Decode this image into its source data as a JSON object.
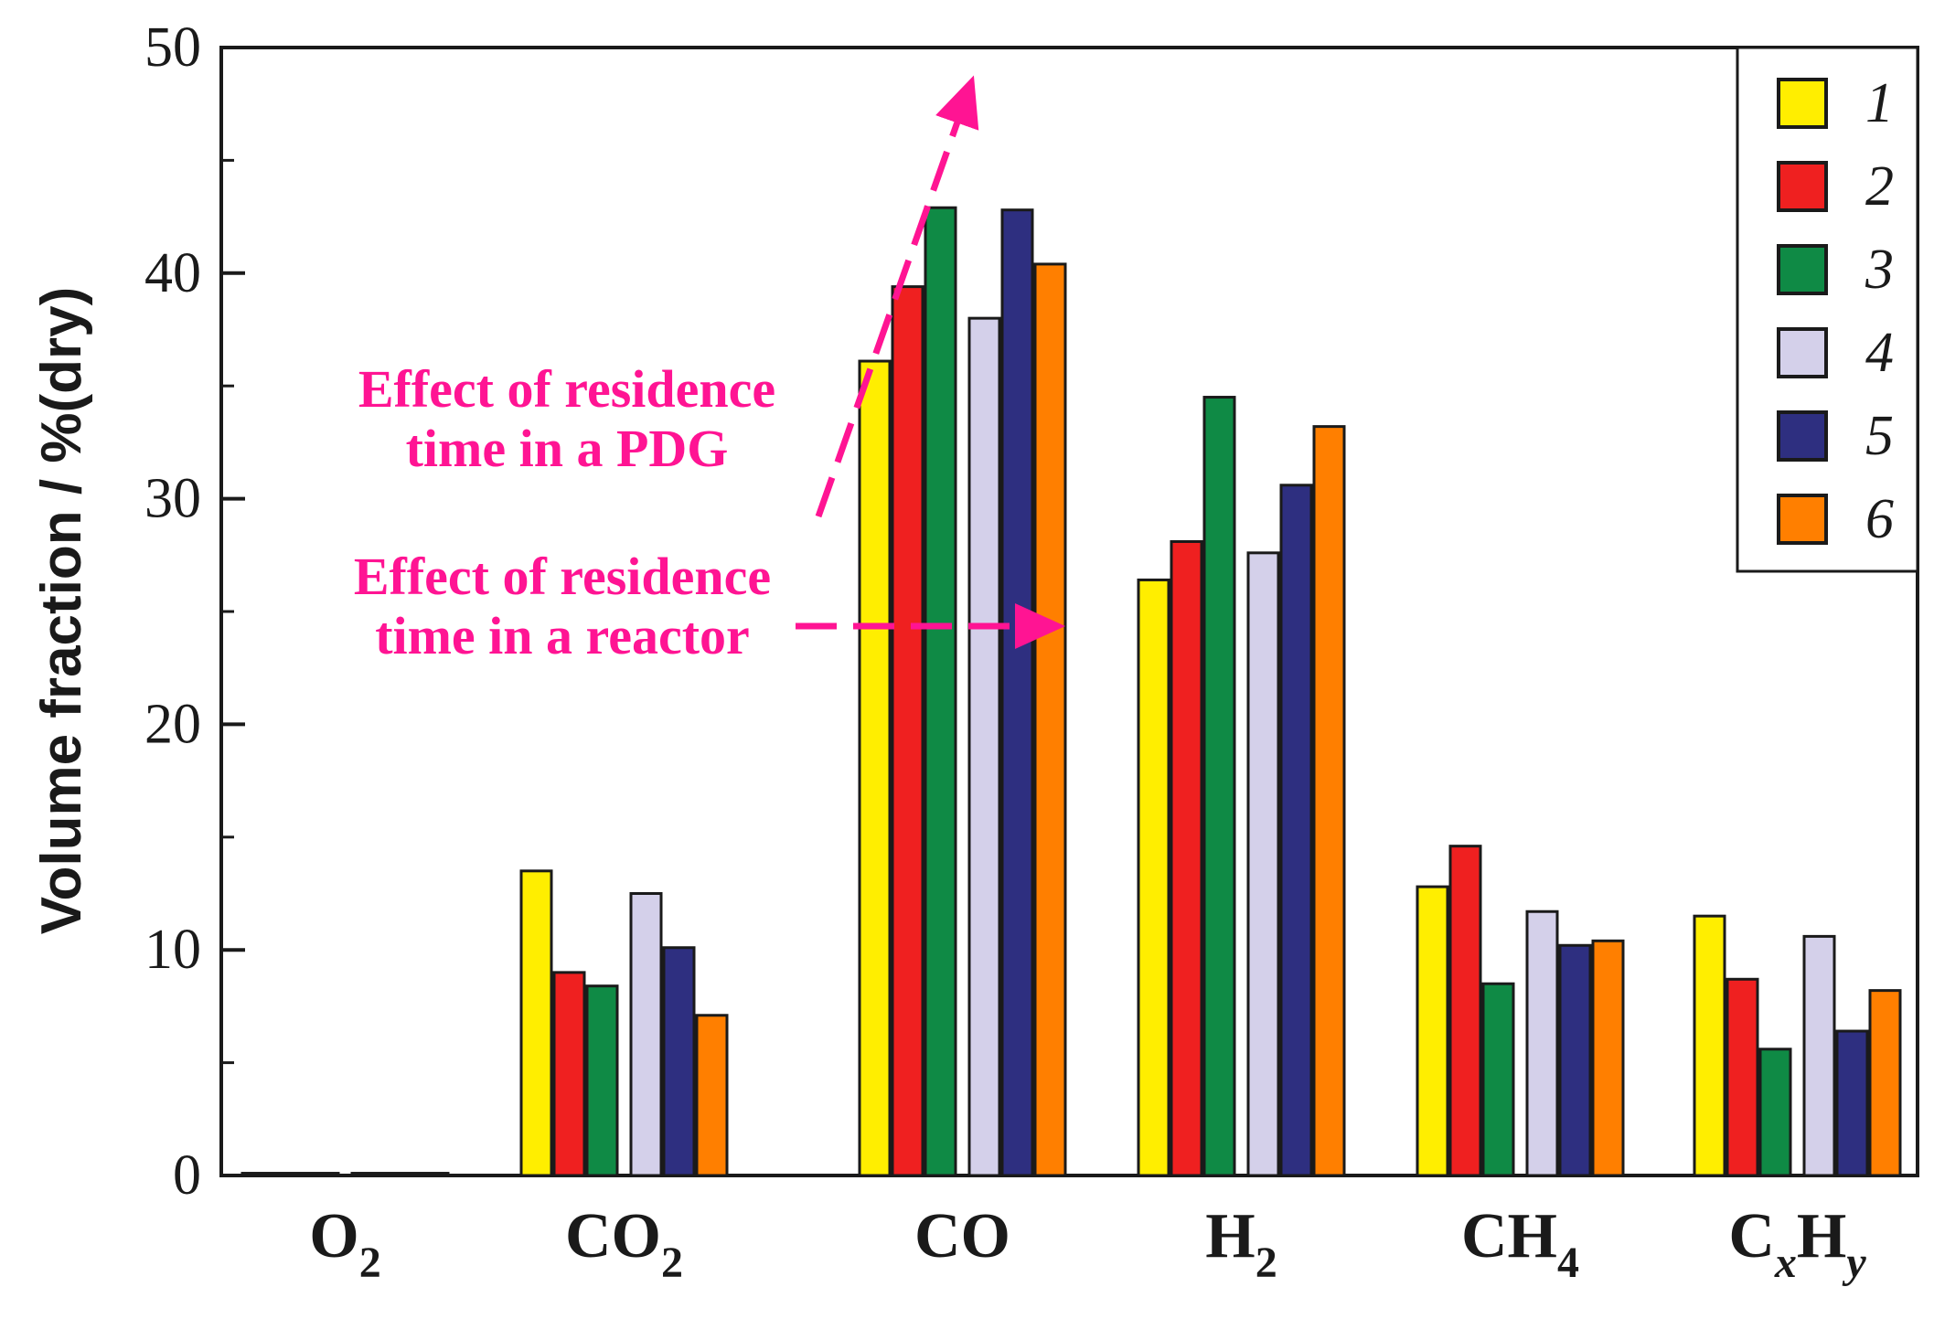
{
  "chart_data": {
    "type": "bar",
    "title": "",
    "xlabel": "",
    "ylabel": "Volume fraction / %(dry)",
    "ylim": [
      0,
      50
    ],
    "yticks": [
      0,
      10,
      20,
      30,
      40,
      50
    ],
    "grid": false,
    "legend_position": "top-right",
    "categories": [
      {
        "base": "O",
        "sub": "2",
        "subitalic": false
      },
      {
        "base": "CO",
        "sub": "2",
        "subitalic": false
      },
      {
        "base": "CO",
        "sub": "",
        "subitalic": false
      },
      {
        "base": "H",
        "sub": "2",
        "subitalic": false
      },
      {
        "base": "CH",
        "sub": "4",
        "subitalic": false
      },
      {
        "base": "C",
        "sub": "x",
        "base2": "H",
        "sub2": "y",
        "subitalic": true
      }
    ],
    "series": [
      {
        "name": "1",
        "color": "#ffee00",
        "values": [
          0.1,
          13.5,
          36.1,
          26.4,
          12.8,
          11.5
        ]
      },
      {
        "name": "2",
        "color": "#ef2020",
        "values": [
          0.1,
          9.0,
          39.4,
          28.1,
          14.6,
          8.7
        ]
      },
      {
        "name": "3",
        "color": "#0f8a45",
        "values": [
          0.1,
          8.4,
          42.9,
          34.5,
          8.5,
          5.6
        ]
      },
      {
        "name": "4",
        "color": "#d4d0ea",
        "values": [
          0.1,
          12.5,
          38.0,
          27.6,
          11.7,
          10.6
        ]
      },
      {
        "name": "5",
        "color": "#2e2f80",
        "values": [
          0.1,
          10.1,
          42.8,
          30.6,
          10.2,
          6.4
        ]
      },
      {
        "name": "6",
        "color": "#ff7f00",
        "values": [
          0.1,
          7.1,
          40.4,
          33.2,
          10.4,
          8.2
        ]
      }
    ],
    "annotations": [
      {
        "lines": [
          "Effect of residence",
          "time in a PDG"
        ],
        "color": "#ff1493"
      },
      {
        "lines": [
          "Effect of residence",
          "time in a reactor"
        ],
        "color": "#ff1493"
      }
    ]
  }
}
